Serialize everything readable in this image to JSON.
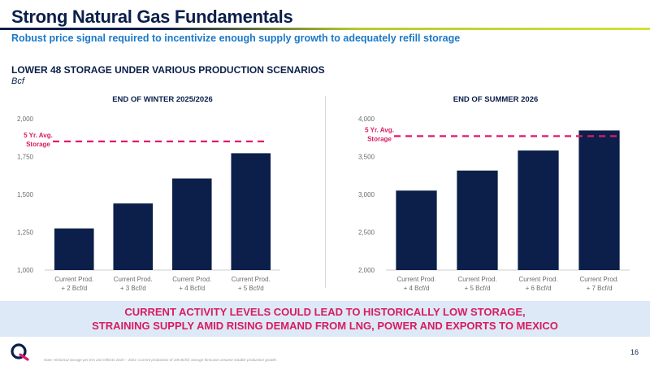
{
  "header": {
    "title": "Strong Natural Gas Fundamentals",
    "subtitle": "Robust price signal required to incentivize enough supply growth to adequately refill storage"
  },
  "section": {
    "title": "LOWER 48 STORAGE UNDER VARIOUS PRODUCTION SCENARIOS",
    "unit": "Bcf"
  },
  "colors": {
    "bar": "#0b1f4a",
    "avg_line": "#e0186c",
    "accent_text": "#d81b60",
    "subtitle": "#1b79c9"
  },
  "chart_data": [
    {
      "type": "bar",
      "title": "END OF WINTER 2025/2026",
      "categories": [
        [
          "Current Prod.",
          "+ 2 Bcf/d"
        ],
        [
          "Current Prod.",
          "+ 3 Bcf/d"
        ],
        [
          "Current Prod.",
          "+ 4 Bcf/d"
        ],
        [
          "Current Prod.",
          "+ 5 Bcf/d"
        ]
      ],
      "values": [
        1275,
        1440,
        1605,
        1772
      ],
      "ylim": [
        1000,
        2000
      ],
      "yticks": [
        1000,
        1250,
        1500,
        1750,
        2000
      ],
      "ytick_labels": [
        "1,000",
        "1,250",
        "1,500",
        "1,750",
        "2,000"
      ],
      "reference_line": {
        "label": [
          "5 Yr. Avg.",
          "Storage"
        ],
        "value": 1850
      },
      "grid": false
    },
    {
      "type": "bar",
      "title": "END OF SUMMER 2026",
      "categories": [
        [
          "Current Prod.",
          "+ 4 Bcf/d"
        ],
        [
          "Current Prod.",
          "+ 5 Bcf/d"
        ],
        [
          "Current Prod.",
          "+ 6 Bcf/d"
        ],
        [
          "Current Prod.",
          "+ 7 Bcf/d"
        ]
      ],
      "values": [
        3050,
        3315,
        3580,
        3845
      ],
      "ylim": [
        2000,
        4000
      ],
      "yticks": [
        2000,
        2500,
        3000,
        3500,
        4000
      ],
      "ytick_labels": [
        "2,000",
        "2,500",
        "3,000",
        "3,500",
        "4,000"
      ],
      "reference_line": {
        "label": [
          "5 Yr. Avg.",
          "Storage"
        ],
        "value": 3770
      },
      "grid": false
    }
  ],
  "callout": {
    "line1": "CURRENT ACTIVITY LEVELS COULD LEAD TO HISTORICALLY LOW STORAGE,",
    "line2": "STRAINING SUPPLY AMID RISING DEMAND FROM LNG, POWER AND EXPORTS TO MEXICO"
  },
  "footer": {
    "note": "Note: Historical storage per EIA and reflects 2020 – 2024. Current production of 105 Bcf/d; storage forecasts assume notable production growth.",
    "page": "16",
    "logo_icon": "company-logo-icon"
  }
}
